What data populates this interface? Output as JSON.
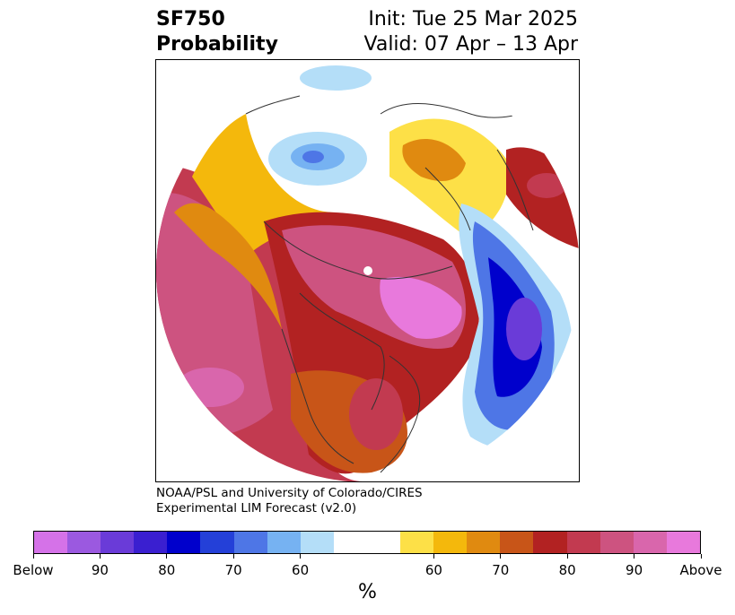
{
  "title": {
    "left_line1": "SF750",
    "left_line2": "Probability",
    "right_line1": "Init: Tue 25 Mar 2025",
    "right_line2": "Valid: 07 Apr – 13 Apr"
  },
  "credit": {
    "line1": "NOAA/PSL and University of Colorado/CIRES",
    "line2": "Experimental LIM Forecast (v2.0)"
  },
  "colorbar": {
    "unit": "%",
    "below_colors": [
      "#d572e8",
      "#9b59e0",
      "#6a3bd8",
      "#3a1fd0",
      "#0000cc",
      "#2440d8",
      "#4e76e6",
      "#76b2f2",
      "#b4def8"
    ],
    "neutral_color": "#ffffff",
    "above_colors": [
      "#fde047",
      "#f4b80c",
      "#e08a10",
      "#c85518",
      "#b22222",
      "#c23a50",
      "#cd5380",
      "#d966ac",
      "#e879dc"
    ],
    "tick_labels": [
      "Below",
      "90",
      "80",
      "70",
      "60",
      "60",
      "70",
      "80",
      "90",
      "Above"
    ]
  },
  "map": {
    "projection": "north-polar-stereographic",
    "colors": {
      "above_strong": "#e879dc",
      "above_high": "#cd5380",
      "above_mid": "#b22222",
      "above_low": "#c85518",
      "above_weak": "#e08a10",
      "above_faint": "#f4b80c",
      "above_edge": "#fde047",
      "below_strong": "#0000cc",
      "below_high": "#6a3bd8",
      "below_mid": "#2440d8",
      "below_low": "#4e76e6",
      "below_weak": "#76b2f2",
      "below_faint": "#b4def8"
    }
  }
}
